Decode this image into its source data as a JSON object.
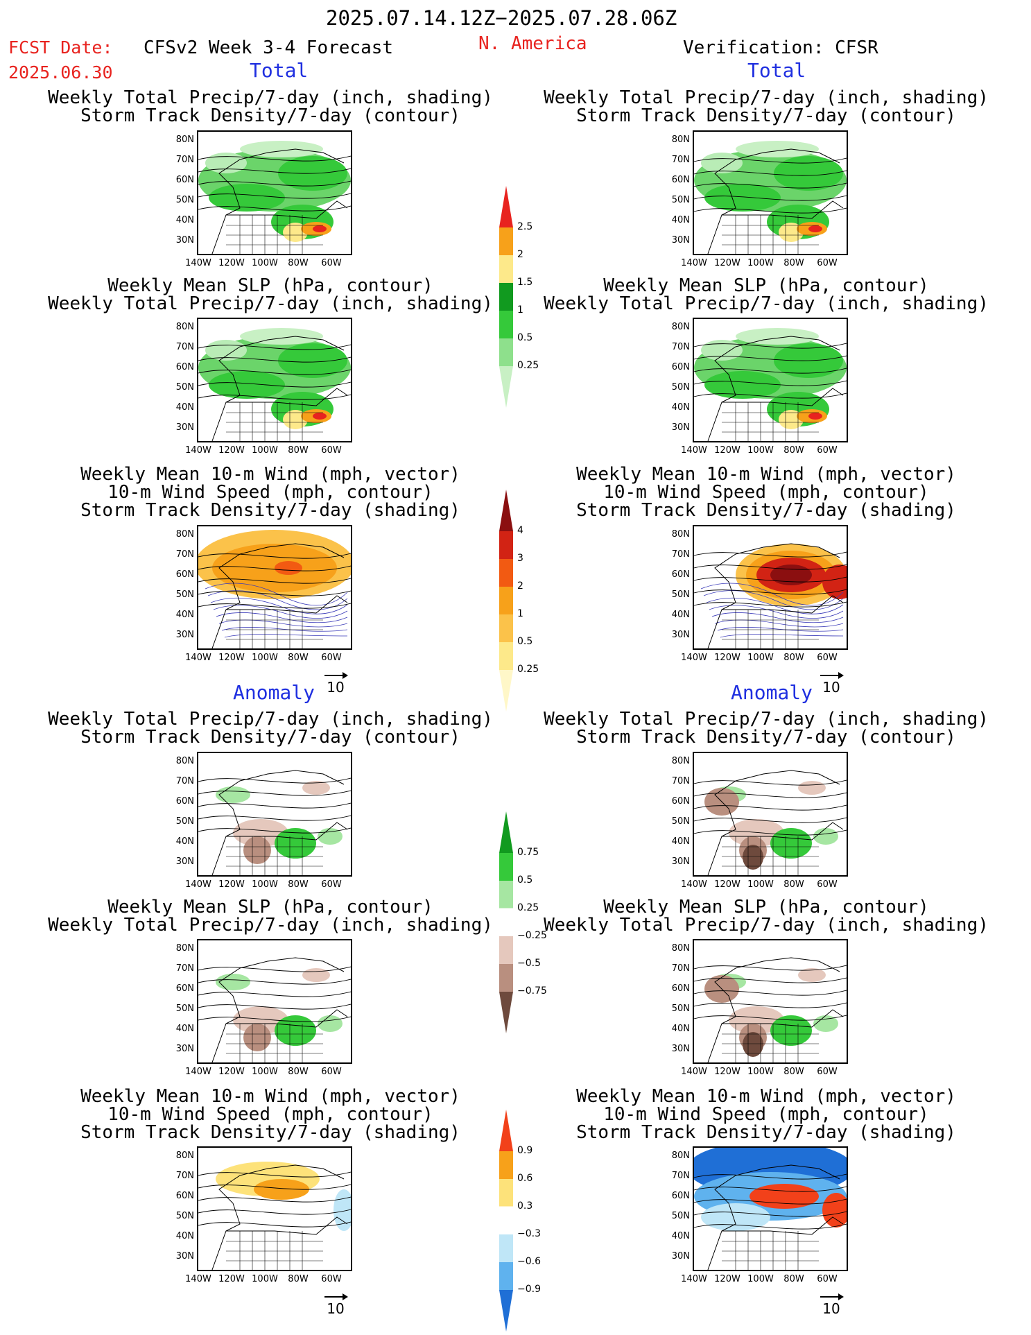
{
  "header": {
    "period": "2025.07.14.12Z−2025.07.28.06Z",
    "fcst_label": "FCST Date:",
    "fcst_date": "2025.06.30",
    "model": "CFSv2 Week 3-4 Forecast",
    "region": "N. America",
    "verification": "Verification: CFSR"
  },
  "sections": {
    "total": "Total",
    "anomaly": "Anomaly"
  },
  "titles": {
    "precip_storm": [
      "Weekly Total Precip/7-day (inch, shading)",
      "Storm Track Density/7-day (contour)"
    ],
    "slp_precip": [
      "Weekly Mean SLP (hPa, contour)",
      "Weekly Total Precip/7-day (inch, shading)"
    ],
    "wind_storm": [
      "Weekly Mean 10-m Wind (mph, vector)",
      "10-m Wind Speed (mph, contour)",
      "Storm Track Density/7-day (shading)"
    ]
  },
  "axes": {
    "lat": [
      "80N",
      "70N",
      "60N",
      "50N",
      "40N",
      "30N"
    ],
    "lon": [
      "140W",
      "120W",
      "100W",
      "80W",
      "60W"
    ]
  },
  "vector_ref": "10",
  "colorbars": {
    "precip_total": {
      "labels": [
        "2.5",
        "2",
        "1.5",
        "1",
        "0.5",
        "0.25"
      ],
      "colors": [
        "#e8231f",
        "#f7a11a",
        "#fde98a",
        "#119a1f",
        "#35c93a",
        "#8ee08c",
        "#c8f0c4"
      ]
    },
    "storm_total": {
      "labels": [
        "4",
        "3",
        "2",
        "1",
        "0.5",
        "0.25"
      ],
      "colors": [
        "#8b0f10",
        "#d22314",
        "#f25a12",
        "#f7a11a",
        "#fbc24a",
        "#fde98a",
        "#fff7c8"
      ]
    },
    "precip_anom": {
      "labels": [
        "0.75",
        "0.5",
        "0.25",
        "−0.25",
        "−0.5",
        "−0.75"
      ],
      "colors": [
        "#119a1f",
        "#35c93a",
        "#a6e6a2",
        "#ffffff",
        "#e5c8bd",
        "#b98f7f",
        "#6e4a3d"
      ]
    },
    "storm_anom": {
      "labels": [
        "0.9",
        "0.6",
        "0.3",
        "−0.3",
        "−0.6",
        "−0.9"
      ],
      "colors": [
        "#f2411a",
        "#f7a11a",
        "#fde27a",
        "#ffffff",
        "#bfe6f7",
        "#5fb2ee",
        "#1f6fd6"
      ]
    }
  },
  "colors": {
    "header_red": "#e8231f",
    "section_blue": "#1f2fe0"
  }
}
